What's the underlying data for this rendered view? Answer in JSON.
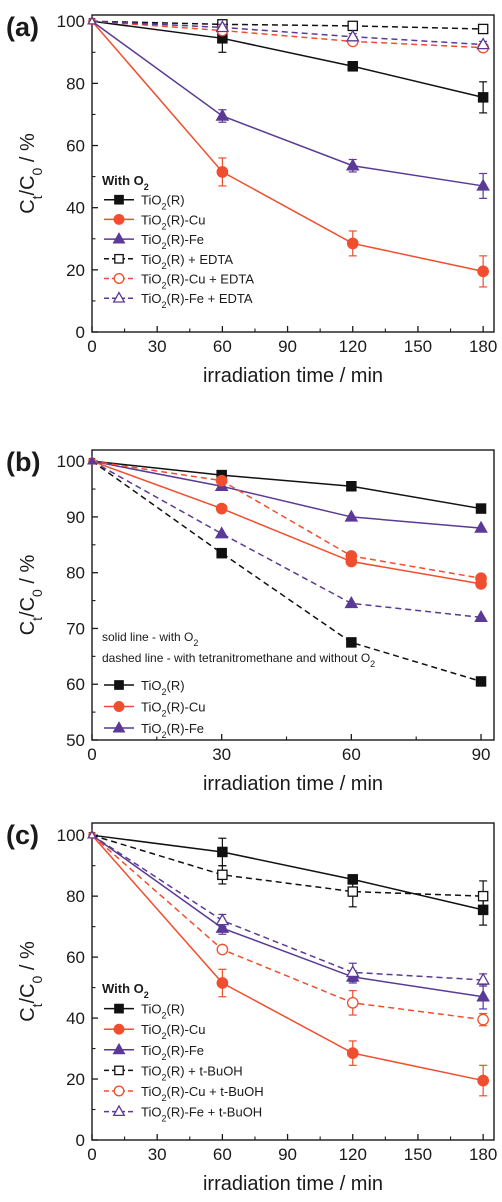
{
  "colors": {
    "black": "#111111",
    "red": "#f04e2e",
    "purple": "#5a3a96"
  },
  "chart_data": [
    {
      "type": "line",
      "panel_label": "(a)",
      "xlabel": "irradiation time / min",
      "ylabel": "Ct/C0 / %",
      "xlim": [
        0,
        185
      ],
      "ylim": [
        0,
        102
      ],
      "xticks": [
        0,
        30,
        60,
        90,
        120,
        150,
        180
      ],
      "yticks": [
        0,
        20,
        40,
        60,
        80,
        100
      ],
      "grid": false,
      "legend_title": "With O2",
      "legend_position": "bottom-left",
      "x": [
        0,
        60,
        120,
        180
      ],
      "series": [
        {
          "name": "TiO2(R)",
          "color": "black",
          "dash": false,
          "marker": "square",
          "filled": true,
          "values": [
            100,
            94.5,
            85.5,
            75.5
          ],
          "errors": [
            0,
            4.5,
            1.5,
            5
          ]
        },
        {
          "name": "TiO2(R)-Cu",
          "color": "red",
          "dash": false,
          "marker": "circle",
          "filled": true,
          "values": [
            100,
            51.5,
            28.5,
            19.5
          ],
          "errors": [
            0,
            4.5,
            4,
            5
          ]
        },
        {
          "name": "TiO2(R)-Fe",
          "color": "purple",
          "dash": false,
          "marker": "triangle",
          "filled": true,
          "values": [
            100,
            69.5,
            53.5,
            47
          ],
          "errors": [
            0,
            2,
            2,
            4
          ]
        },
        {
          "name": "TiO2(R) + EDTA",
          "color": "black",
          "dash": true,
          "marker": "square",
          "filled": false,
          "values": [
            100,
            99,
            98.5,
            97.5
          ],
          "errors": [
            0,
            1,
            0.5,
            0.5
          ]
        },
        {
          "name": "TiO2(R)-Cu + EDTA",
          "color": "red",
          "dash": true,
          "marker": "circle",
          "filled": false,
          "values": [
            100,
            97,
            93.5,
            91.5
          ],
          "errors": [
            0,
            1,
            1,
            1
          ]
        },
        {
          "name": "TiO2(R)-Fe + EDTA",
          "color": "purple",
          "dash": true,
          "marker": "triangle",
          "filled": false,
          "values": [
            100,
            98,
            95,
            92.5
          ],
          "errors": [
            0,
            1,
            1,
            1
          ]
        }
      ]
    },
    {
      "type": "line",
      "panel_label": "(b)",
      "xlabel": "irradiation time / min",
      "ylabel": "Ct/C0 / %",
      "xlim": [
        0,
        93
      ],
      "ylim": [
        50,
        102
      ],
      "xticks": [
        0,
        30,
        60,
        90
      ],
      "yticks": [
        50,
        60,
        70,
        80,
        90,
        100
      ],
      "grid": false,
      "note_lines": [
        "solid line - with O2",
        "dashed line - with tetranitromethane and without O2"
      ],
      "legend_position": "bottom-left",
      "legend_entries": [
        "TiO2(R)",
        "TiO2(R)-Cu",
        "TiO2(R)-Fe"
      ],
      "x": [
        0,
        30,
        60,
        90
      ],
      "series": [
        {
          "name": "TiO2(R)",
          "color": "black",
          "dash": false,
          "marker": "square",
          "filled": true,
          "values": [
            100,
            97.5,
            95.5,
            91.5
          ]
        },
        {
          "name": "TiO2(R)-Cu",
          "color": "red",
          "dash": false,
          "marker": "circle",
          "filled": true,
          "values": [
            100,
            91.5,
            82,
            78
          ]
        },
        {
          "name": "TiO2(R)-Fe",
          "color": "purple",
          "dash": false,
          "marker": "triangle",
          "filled": true,
          "values": [
            100,
            95.5,
            90,
            88
          ]
        },
        {
          "color": "black",
          "dash": true,
          "marker": "square",
          "filled": true,
          "values": [
            100,
            83.5,
            67.5,
            60.5
          ]
        },
        {
          "color": "red",
          "dash": true,
          "marker": "circle",
          "filled": true,
          "values": [
            100,
            96.5,
            83,
            79
          ]
        },
        {
          "color": "purple",
          "dash": true,
          "marker": "triangle",
          "filled": true,
          "values": [
            100,
            87,
            74.5,
            72
          ]
        }
      ]
    },
    {
      "type": "line",
      "panel_label": "(c)",
      "xlabel": "irradiation time / min",
      "ylabel": "Ct/C0 / %",
      "xlim": [
        0,
        185
      ],
      "ylim": [
        0,
        104
      ],
      "xticks": [
        0,
        30,
        60,
        90,
        120,
        150,
        180
      ],
      "yticks": [
        0,
        20,
        40,
        60,
        80,
        100
      ],
      "grid": false,
      "legend_title": "With O2",
      "legend_position": "bottom-left",
      "x": [
        0,
        60,
        120,
        180
      ],
      "series": [
        {
          "name": "TiO2(R)",
          "color": "black",
          "dash": false,
          "marker": "square",
          "filled": true,
          "values": [
            100,
            94.5,
            85.5,
            75.5
          ],
          "errors": [
            0,
            4.5,
            1.5,
            5
          ]
        },
        {
          "name": "TiO2(R)-Cu",
          "color": "red",
          "dash": false,
          "marker": "circle",
          "filled": true,
          "values": [
            100,
            51.5,
            28.5,
            19.5
          ],
          "errors": [
            0,
            4.5,
            4,
            5
          ]
        },
        {
          "name": "TiO2(R)-Fe",
          "color": "purple",
          "dash": false,
          "marker": "triangle",
          "filled": true,
          "values": [
            100,
            69.5,
            53.5,
            47
          ],
          "errors": [
            0,
            2,
            2,
            4
          ]
        },
        {
          "name": "TiO2(R) + t-BuOH",
          "color": "black",
          "dash": true,
          "marker": "square",
          "filled": false,
          "values": [
            100,
            87,
            81.5,
            80
          ],
          "errors": [
            0,
            3,
            5,
            5
          ]
        },
        {
          "name": "TiO2(R)-Cu + t-BuOH",
          "color": "red",
          "dash": true,
          "marker": "circle",
          "filled": false,
          "values": [
            100,
            62.5,
            45,
            39.5
          ],
          "errors": [
            0,
            1,
            4,
            2
          ]
        },
        {
          "name": "TiO2(R)-Fe + t-BuOH",
          "color": "purple",
          "dash": true,
          "marker": "triangle",
          "filled": false,
          "values": [
            100,
            72,
            55,
            52.5
          ],
          "errors": [
            0,
            2,
            3,
            2
          ]
        }
      ]
    }
  ]
}
